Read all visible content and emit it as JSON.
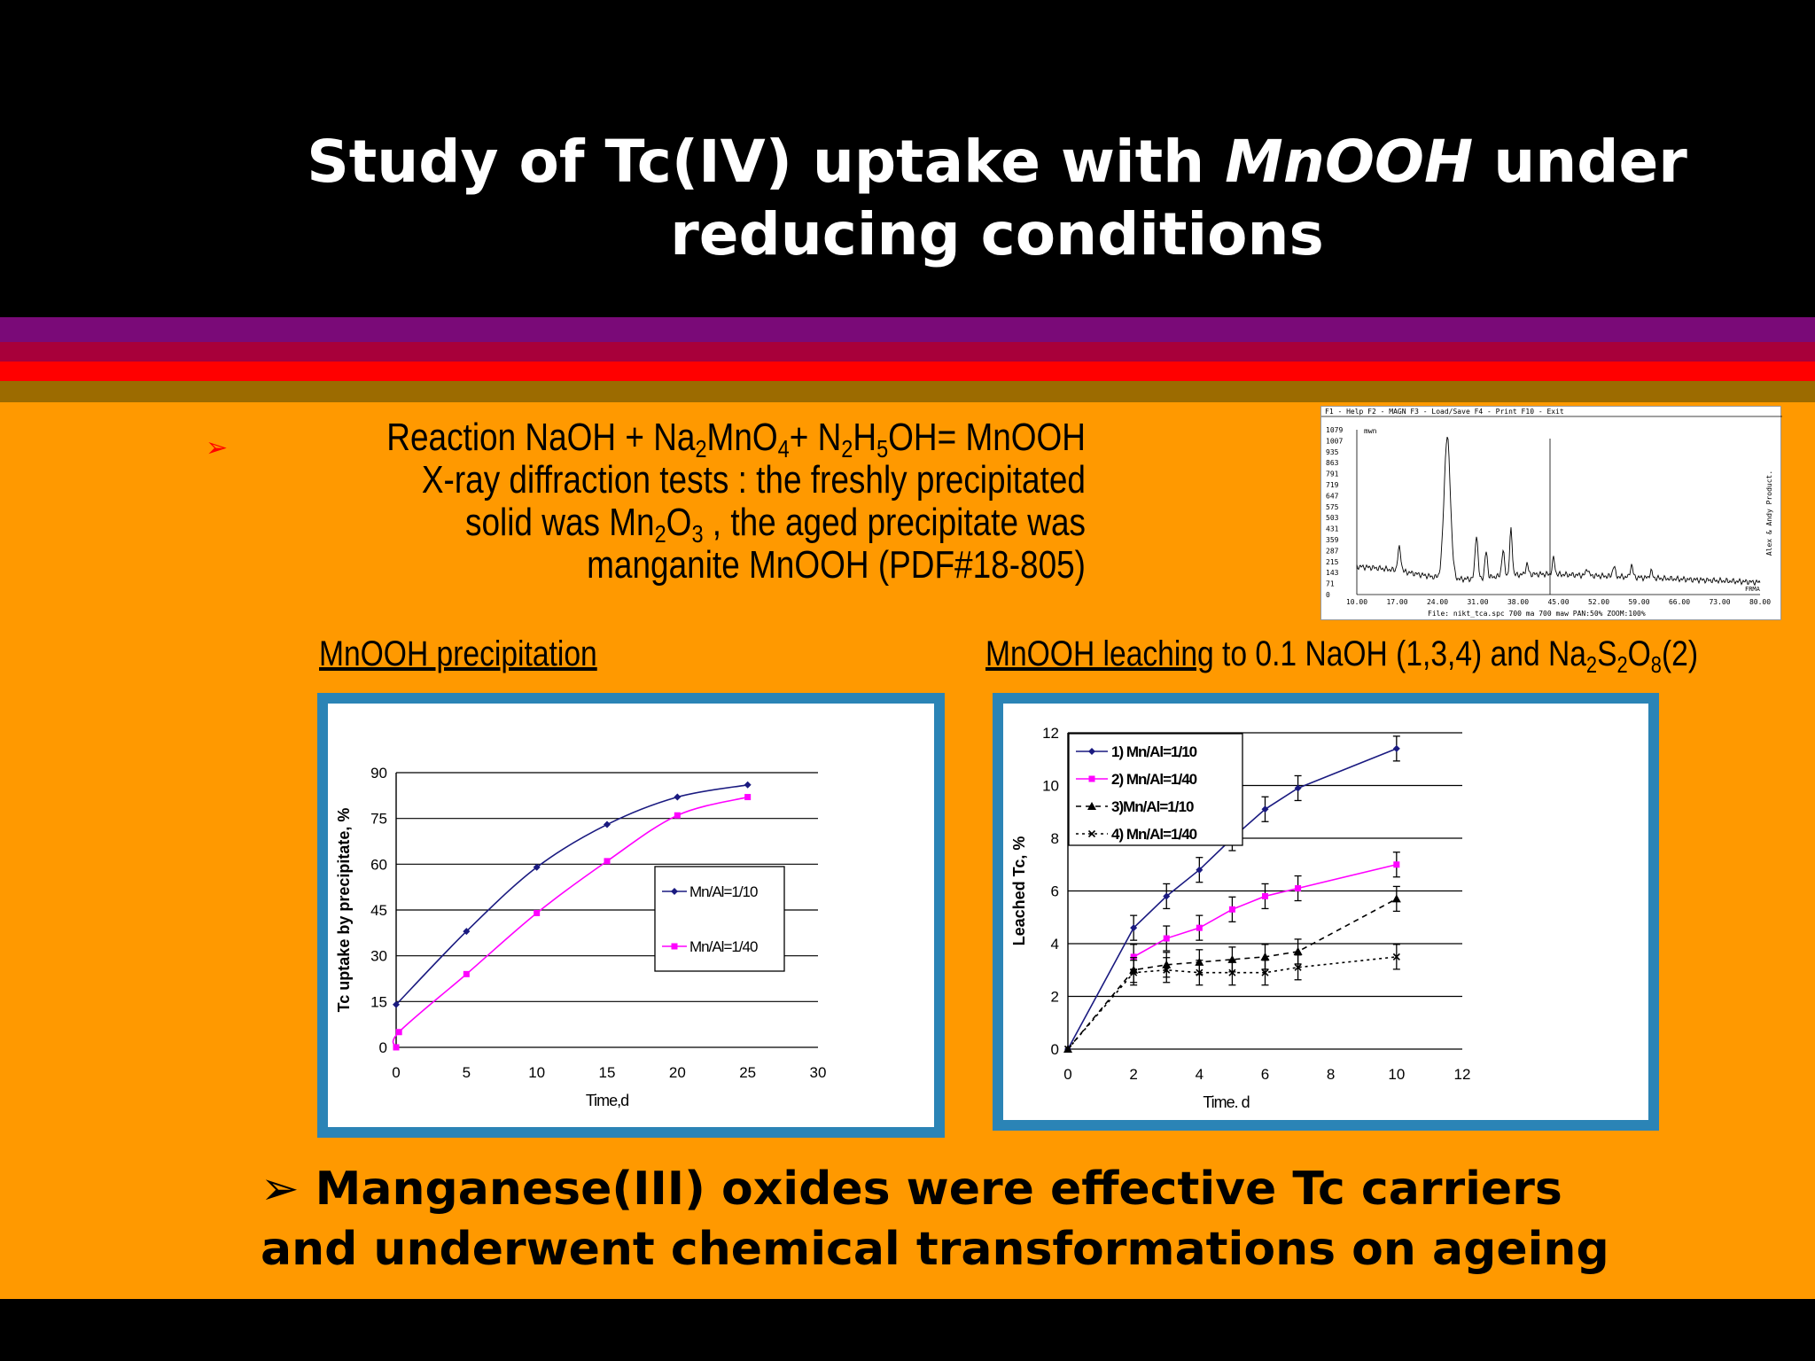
{
  "slide": {
    "title_part1": "Study of Tc(IV) uptake with ",
    "title_italic": "MnOOH",
    "title_part2": " under reducing conditions",
    "reaction": {
      "line1_a": "Reaction NaOH + Na",
      "line1_sub1": "2",
      "line1_b": "MnO",
      "line1_sub2": "4",
      "line1_c": "+ N",
      "line1_sub3": "2",
      "line1_d": "H",
      "line1_sub4": "5",
      "line1_e": "OH= MnOOH",
      "line2": "X-ray diffraction tests : the freshly precipitated",
      "line3_a": "solid was Mn",
      "line3_sub1": "2",
      "line3_b": "O",
      "line3_sub2": "3",
      "line3_c": " , the  aged precipitate was",
      "line4": "manganite MnOOH (PDF#18-805)"
    },
    "caption_left": "MnOOH precipitation",
    "caption_right_u": "MnOOH leaching",
    "caption_right_a": " to 0.1 NaOH (1,3,4) and Na",
    "caption_right_sub1": "2",
    "caption_right_b": "S",
    "caption_right_sub2": "2",
    "caption_right_c": "O",
    "caption_right_sub3": "8",
    "caption_right_d": "(2)",
    "conclusion_line1": "➢ Manganese(III) oxides were effective Tc carriers",
    "conclusion_line2": "and underwent chemical transformations on ageing",
    "colors": {
      "accent_arrow": "#ff0000",
      "frame": "#2b84b6",
      "background": "#ff9900"
    }
  },
  "xrd": {
    "menu": "F1 - Help  F2 - MAGN  F3 - Load/Save  F4 -  Print  F10 - Exit",
    "yticks": [
      "1079",
      "1007",
      "935",
      "863",
      "791",
      "719",
      "647",
      "575",
      "503",
      "431",
      "359",
      "287",
      "215",
      "143",
      "71",
      "0"
    ],
    "xticks": [
      "10.00",
      "17.00",
      "24.00",
      "31.00",
      "38.00",
      "45.00",
      "52.00",
      "59.00",
      "66.00",
      "73.00",
      "80.00"
    ],
    "footer": "File:  nikt_tca.spc 700    ma 700    maw PAN:50%  ZOOM:100%",
    "side_text": "Alex & Andy Product.",
    "unit_label": "mwn",
    "corner_label": "FRMA"
  },
  "chart_data": [
    {
      "type": "line",
      "xlabel": "Time,d",
      "ylabel": "Tc uptake by precipitate, %",
      "xlim": [
        0,
        30
      ],
      "ylim": [
        0,
        90
      ],
      "xticks": [
        0,
        5,
        10,
        15,
        20,
        25,
        30
      ],
      "yticks": [
        0,
        15,
        30,
        45,
        60,
        75,
        90
      ],
      "grid": "horizontal",
      "legend": "right",
      "series": [
        {
          "name": "Mn/Al=1/10",
          "color": "#1a1a80",
          "marker": "diamond",
          "x": [
            0,
            5,
            10,
            15,
            20,
            25
          ],
          "y": [
            14,
            38,
            59,
            73,
            82,
            86
          ]
        },
        {
          "name": "Mn/Al=1/40",
          "color": "#ff00ff",
          "marker": "square",
          "x": [
            0,
            0.2,
            5,
            10,
            15,
            20,
            25
          ],
          "y": [
            0,
            5,
            24,
            44,
            61,
            76,
            82
          ]
        }
      ]
    },
    {
      "type": "line",
      "xlabel": "Time. d",
      "ylabel": "Leached Tc, %",
      "xlim": [
        0,
        12
      ],
      "ylim": [
        0,
        12
      ],
      "xticks": [
        0,
        2,
        4,
        6,
        8,
        10,
        12
      ],
      "yticks": [
        0,
        2,
        4,
        6,
        8,
        10,
        12
      ],
      "grid": "horizontal",
      "legend": "top-left",
      "series": [
        {
          "name": "1) Mn/Al=1/10",
          "color": "#1a1a80",
          "marker": "diamond",
          "dash": "",
          "x": [
            0,
            2,
            3,
            4,
            5,
            6,
            7,
            10
          ],
          "y": [
            0,
            4.6,
            5.8,
            6.8,
            8.0,
            9.1,
            9.9,
            11.4
          ]
        },
        {
          "name": "2) Mn/Al=1/40",
          "color": "#ff00ff",
          "marker": "square",
          "dash": "",
          "x": [
            2,
            3,
            4,
            5,
            6,
            7,
            10
          ],
          "y": [
            3.5,
            4.2,
            4.6,
            5.3,
            5.8,
            6.1,
            7.0
          ]
        },
        {
          "name": "3)Mn/Al=1/10",
          "color": "#000000",
          "marker": "triangle",
          "dash": "6,5",
          "x": [
            0,
            2,
            3,
            4,
            5,
            6,
            7,
            10
          ],
          "y": [
            0,
            3.0,
            3.2,
            3.3,
            3.4,
            3.5,
            3.7,
            5.7
          ]
        },
        {
          "name": "4) Mn/Al=1/40",
          "color": "#000000",
          "marker": "x",
          "dash": "3,4",
          "x": [
            0,
            2,
            3,
            4,
            5,
            6,
            7,
            10
          ],
          "y": [
            0,
            2.9,
            3.0,
            2.9,
            2.9,
            2.9,
            3.1,
            3.5
          ]
        }
      ]
    }
  ]
}
